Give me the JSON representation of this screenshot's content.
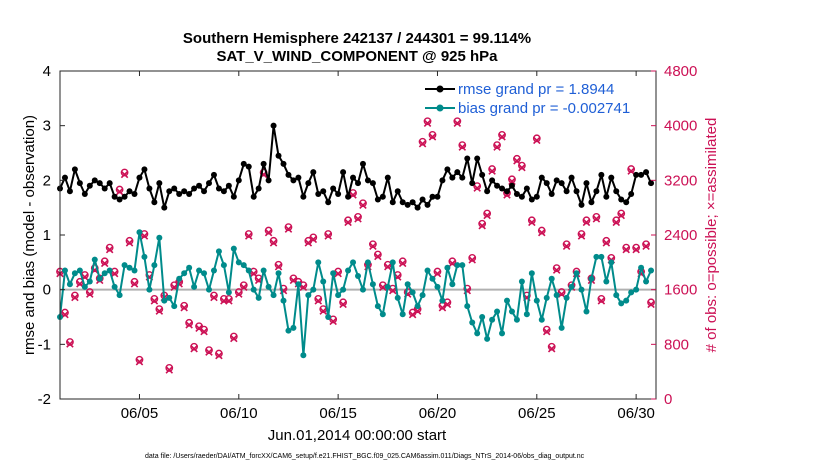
{
  "chart_data": {
    "type": "line",
    "title": "Southern Hemisphere 242137 / 244301 = 99.114%",
    "subtitle": "SAT_V_WIND_COMPONENT @ 925 hPa",
    "xlabel": "Jun.01,2014 00:00:00 start",
    "ylabel": "rmse and bias (model - observation)",
    "y2label": "# of obs: o=possible; ×=assimilated",
    "footnote": "data file: /Users/raeder/DAI/ATM_forcXX/CAM6_setup/f.e21.FHIST_BGC.f09_025.CAM6assim.011/Diags_NTrS_2014-06/obs_diag_output.nc",
    "xlim": [
      1,
      31
    ],
    "ylim": [
      -2,
      4
    ],
    "y2lim": [
      0,
      4800
    ],
    "x_ticks": [
      5,
      10,
      15,
      20,
      25,
      30
    ],
    "x_tick_labels": [
      "06/05",
      "06/10",
      "06/15",
      "06/20",
      "06/25",
      "06/30"
    ],
    "y_ticks": [
      -2,
      -1,
      0,
      1,
      2,
      3,
      4
    ],
    "y_tick_labels": [
      "-2",
      "-1",
      "0",
      "1",
      "2",
      "3",
      "4"
    ],
    "y2_ticks": [
      0,
      800,
      1600,
      2400,
      3200,
      4000,
      4800
    ],
    "y2_tick_labels": [
      "0",
      "800",
      "1600",
      "2400",
      "3200",
      "4000",
      "4800"
    ],
    "series": [
      {
        "name": "rmse",
        "legend": "rmse grand pr = 1.8944",
        "color": "#000000",
        "x": [
          1.0,
          1.25,
          1.5,
          1.75,
          2.0,
          2.25,
          2.5,
          2.75,
          3.0,
          3.25,
          3.5,
          3.75,
          4.0,
          4.25,
          4.5,
          4.75,
          5.0,
          5.25,
          5.5,
          5.75,
          6.0,
          6.25,
          6.5,
          6.75,
          7.0,
          7.25,
          7.5,
          7.75,
          8.0,
          8.25,
          8.5,
          8.75,
          9.0,
          9.25,
          9.5,
          9.75,
          10.0,
          10.25,
          10.5,
          10.75,
          11.0,
          11.25,
          11.5,
          11.75,
          12.0,
          12.25,
          12.5,
          12.75,
          13.0,
          13.25,
          13.5,
          13.75,
          14.0,
          14.25,
          14.5,
          14.75,
          15.0,
          15.25,
          15.5,
          15.75,
          16.0,
          16.25,
          16.5,
          16.75,
          17.0,
          17.25,
          17.5,
          17.75,
          18.0,
          18.25,
          18.5,
          18.75,
          19.0,
          19.25,
          19.5,
          19.75,
          20.0,
          20.25,
          20.5,
          20.75,
          21.0,
          21.25,
          21.5,
          21.75,
          22.0,
          22.25,
          22.5,
          22.75,
          23.0,
          23.25,
          23.5,
          23.75,
          24.0,
          24.25,
          24.5,
          24.75,
          25.0,
          25.25,
          25.5,
          25.75,
          26.0,
          26.25,
          26.5,
          26.75,
          27.0,
          27.25,
          27.5,
          27.75,
          28.0,
          28.25,
          28.5,
          28.75,
          29.0,
          29.25,
          29.5,
          29.75,
          30.0,
          30.25,
          30.5,
          30.75
        ],
        "values": [
          1.85,
          2.05,
          1.8,
          2.2,
          1.95,
          1.75,
          1.9,
          2.0,
          1.95,
          1.85,
          1.95,
          1.7,
          1.65,
          1.7,
          1.8,
          1.75,
          2.05,
          2.2,
          1.85,
          1.6,
          1.95,
          1.5,
          1.8,
          1.85,
          1.75,
          1.8,
          1.75,
          1.85,
          1.9,
          1.8,
          1.95,
          2.1,
          1.85,
          1.8,
          1.9,
          1.7,
          2.0,
          2.3,
          2.25,
          1.7,
          1.85,
          2.3,
          2.0,
          3.0,
          2.45,
          2.3,
          2.1,
          2.0,
          2.05,
          1.7,
          1.95,
          2.15,
          1.75,
          1.8,
          1.6,
          1.85,
          1.75,
          2.15,
          1.7,
          2.05,
          1.95,
          2.3,
          2.0,
          1.95,
          1.65,
          1.7,
          2.05,
          1.6,
          1.8,
          1.6,
          1.55,
          1.6,
          1.5,
          1.65,
          1.55,
          1.7,
          1.7,
          2.0,
          2.2,
          2.05,
          2.15,
          2.05,
          2.4,
          1.95,
          2.4,
          2.1,
          1.8,
          2.0,
          1.9,
          1.85,
          1.8,
          1.9,
          1.75,
          1.7,
          1.85,
          1.65,
          1.7,
          2.05,
          1.95,
          1.75,
          2.0,
          1.95,
          1.8,
          2.05,
          1.8,
          1.55,
          1.95,
          1.6,
          1.8,
          2.1,
          1.7,
          2.05,
          1.8,
          1.65,
          1.6,
          1.75,
          2.1,
          2.1,
          2.15,
          1.95
        ]
      },
      {
        "name": "bias",
        "legend": "bias grand pr = -0.002741",
        "color": "#008b8b",
        "x": [
          1.0,
          1.25,
          1.5,
          1.75,
          2.0,
          2.25,
          2.5,
          2.75,
          3.0,
          3.25,
          3.5,
          3.75,
          4.0,
          4.25,
          4.5,
          4.75,
          5.0,
          5.25,
          5.5,
          5.75,
          6.0,
          6.25,
          6.5,
          6.75,
          7.0,
          7.25,
          7.5,
          7.75,
          8.0,
          8.25,
          8.5,
          8.75,
          9.0,
          9.25,
          9.5,
          9.75,
          10.0,
          10.25,
          10.5,
          10.75,
          11.0,
          11.25,
          11.5,
          11.75,
          12.0,
          12.25,
          12.5,
          12.75,
          13.0,
          13.25,
          13.5,
          13.75,
          14.0,
          14.25,
          14.5,
          14.75,
          15.0,
          15.25,
          15.5,
          15.75,
          16.0,
          16.25,
          16.5,
          16.75,
          17.0,
          17.25,
          17.5,
          17.75,
          18.0,
          18.25,
          18.5,
          18.75,
          19.0,
          19.25,
          19.5,
          19.75,
          20.0,
          20.25,
          20.5,
          20.75,
          21.0,
          21.25,
          21.5,
          21.75,
          22.0,
          22.25,
          22.5,
          22.75,
          23.0,
          23.25,
          23.5,
          23.75,
          24.0,
          24.25,
          24.5,
          24.75,
          25.0,
          25.25,
          25.5,
          25.75,
          26.0,
          26.25,
          26.5,
          26.75,
          27.0,
          27.25,
          27.5,
          27.75,
          28.0,
          28.25,
          28.5,
          28.75,
          29.0,
          29.25,
          29.5,
          29.75,
          30.0,
          30.25,
          30.5,
          30.75
        ],
        "values": [
          -0.5,
          0.35,
          0.1,
          0.3,
          0.35,
          0.05,
          0.15,
          0.55,
          0.2,
          0.3,
          0.35,
          0.05,
          -0.1,
          0.45,
          0.4,
          0.35,
          1.05,
          0.6,
          0.0,
          0.45,
          0.95,
          -0.2,
          -0.15,
          -0.3,
          0.2,
          0.3,
          0.4,
          0.05,
          0.35,
          0.3,
          0.0,
          0.35,
          0.7,
          0.45,
          -0.05,
          0.75,
          0.5,
          0.45,
          0.35,
          0.0,
          -0.15,
          0.35,
          0.05,
          -0.1,
          0.3,
          -0.2,
          -0.75,
          -0.7,
          0.1,
          -1.2,
          -0.1,
          0.0,
          0.5,
          0.15,
          -0.5,
          0.3,
          -0.1,
          0.0,
          0.35,
          0.5,
          0.25,
          0.0,
          0.5,
          0.1,
          -0.3,
          -0.45,
          0.05,
          0.5,
          -0.15,
          -0.45,
          0.1,
          -0.05,
          -0.3,
          -0.1,
          0.35,
          0.2,
          0.05,
          -0.2,
          0.4,
          0.1,
          0.45,
          0.45,
          -0.3,
          -0.6,
          -0.8,
          -0.5,
          -0.9,
          -0.55,
          -0.4,
          -0.8,
          -0.2,
          -0.4,
          -0.55,
          0.15,
          -0.45,
          0.3,
          -0.2,
          -0.55,
          -0.15,
          0.2,
          -0.1,
          -0.7,
          -0.15,
          0.05,
          0.3,
          0.0,
          -0.4,
          0.2,
          0.6,
          0.6,
          0.15,
          0.5,
          -0.1,
          -0.25,
          -0.2,
          -0.05,
          0.0,
          0.4,
          0.15,
          0.35
        ]
      }
    ],
    "obs_counts": {
      "color": "#cc1155",
      "x": [
        1.0,
        1.25,
        1.5,
        1.75,
        2.0,
        2.25,
        2.5,
        2.75,
        3.0,
        3.25,
        3.5,
        3.75,
        4.0,
        4.25,
        4.5,
        4.75,
        5.0,
        5.25,
        5.5,
        5.75,
        6.0,
        6.25,
        6.5,
        6.75,
        7.0,
        7.25,
        7.5,
        7.75,
        8.0,
        8.25,
        8.5,
        8.75,
        9.0,
        9.25,
        9.5,
        9.75,
        10.0,
        10.25,
        10.5,
        10.75,
        11.0,
        11.25,
        11.5,
        11.75,
        12.0,
        12.25,
        12.5,
        12.75,
        13.0,
        13.25,
        13.5,
        13.75,
        14.0,
        14.25,
        14.5,
        14.75,
        15.0,
        15.25,
        15.5,
        15.75,
        16.0,
        16.25,
        16.5,
        16.75,
        17.0,
        17.25,
        17.5,
        17.75,
        18.0,
        18.25,
        18.5,
        18.75,
        19.0,
        19.25,
        19.5,
        19.75,
        20.0,
        20.25,
        20.5,
        20.75,
        21.0,
        21.25,
        21.5,
        21.75,
        22.0,
        22.25,
        22.5,
        22.75,
        23.0,
        23.25,
        23.5,
        23.75,
        24.0,
        24.25,
        24.5,
        24.75,
        25.0,
        25.25,
        25.5,
        25.75,
        26.0,
        26.25,
        26.5,
        26.75,
        27.0,
        27.25,
        27.5,
        27.75,
        28.0,
        28.25,
        28.5,
        28.75,
        29.0,
        29.25,
        29.5,
        29.75,
        30.0,
        30.25,
        30.5,
        30.75
      ],
      "values": [
        1850,
        1250,
        820,
        1500,
        1700,
        1800,
        1550,
        1900,
        1750,
        2000,
        2200,
        1850,
        3050,
        3300,
        2300,
        1700,
        560,
        2400,
        1800,
        1450,
        1300,
        1500,
        440,
        1650,
        1700,
        1350,
        1100,
        750,
        1050,
        1000,
        700,
        1500,
        650,
        1450,
        1450,
        900,
        1550,
        1650,
        2400,
        1850,
        1750,
        3300,
        2450,
        2300,
        1950,
        1600,
        2500,
        1750,
        1700,
        1650,
        2300,
        2350,
        1450,
        1300,
        2400,
        1150,
        1850,
        1400,
        2600,
        3000,
        2650,
        2850,
        1950,
        2250,
        2100,
        1650,
        1950,
        1600,
        1800,
        2000,
        1550,
        1250,
        1300,
        3750,
        4050,
        3850,
        1850,
        1350,
        1400,
        2000,
        4050,
        3700,
        1600,
        2050,
        3100,
        2550,
        2700,
        3350,
        3700,
        3850,
        3000,
        3200,
        3500,
        3400,
        1500,
        2600,
        3800,
        2450,
        1000,
        750,
        1900,
        1550,
        2250,
        1650,
        1850,
        2400,
        2600,
        1750,
        2650,
        1450,
        2300,
        2050,
        2600,
        2700,
        2200,
        3350,
        2200,
        1850,
        2250,
        1400
      ]
    }
  }
}
